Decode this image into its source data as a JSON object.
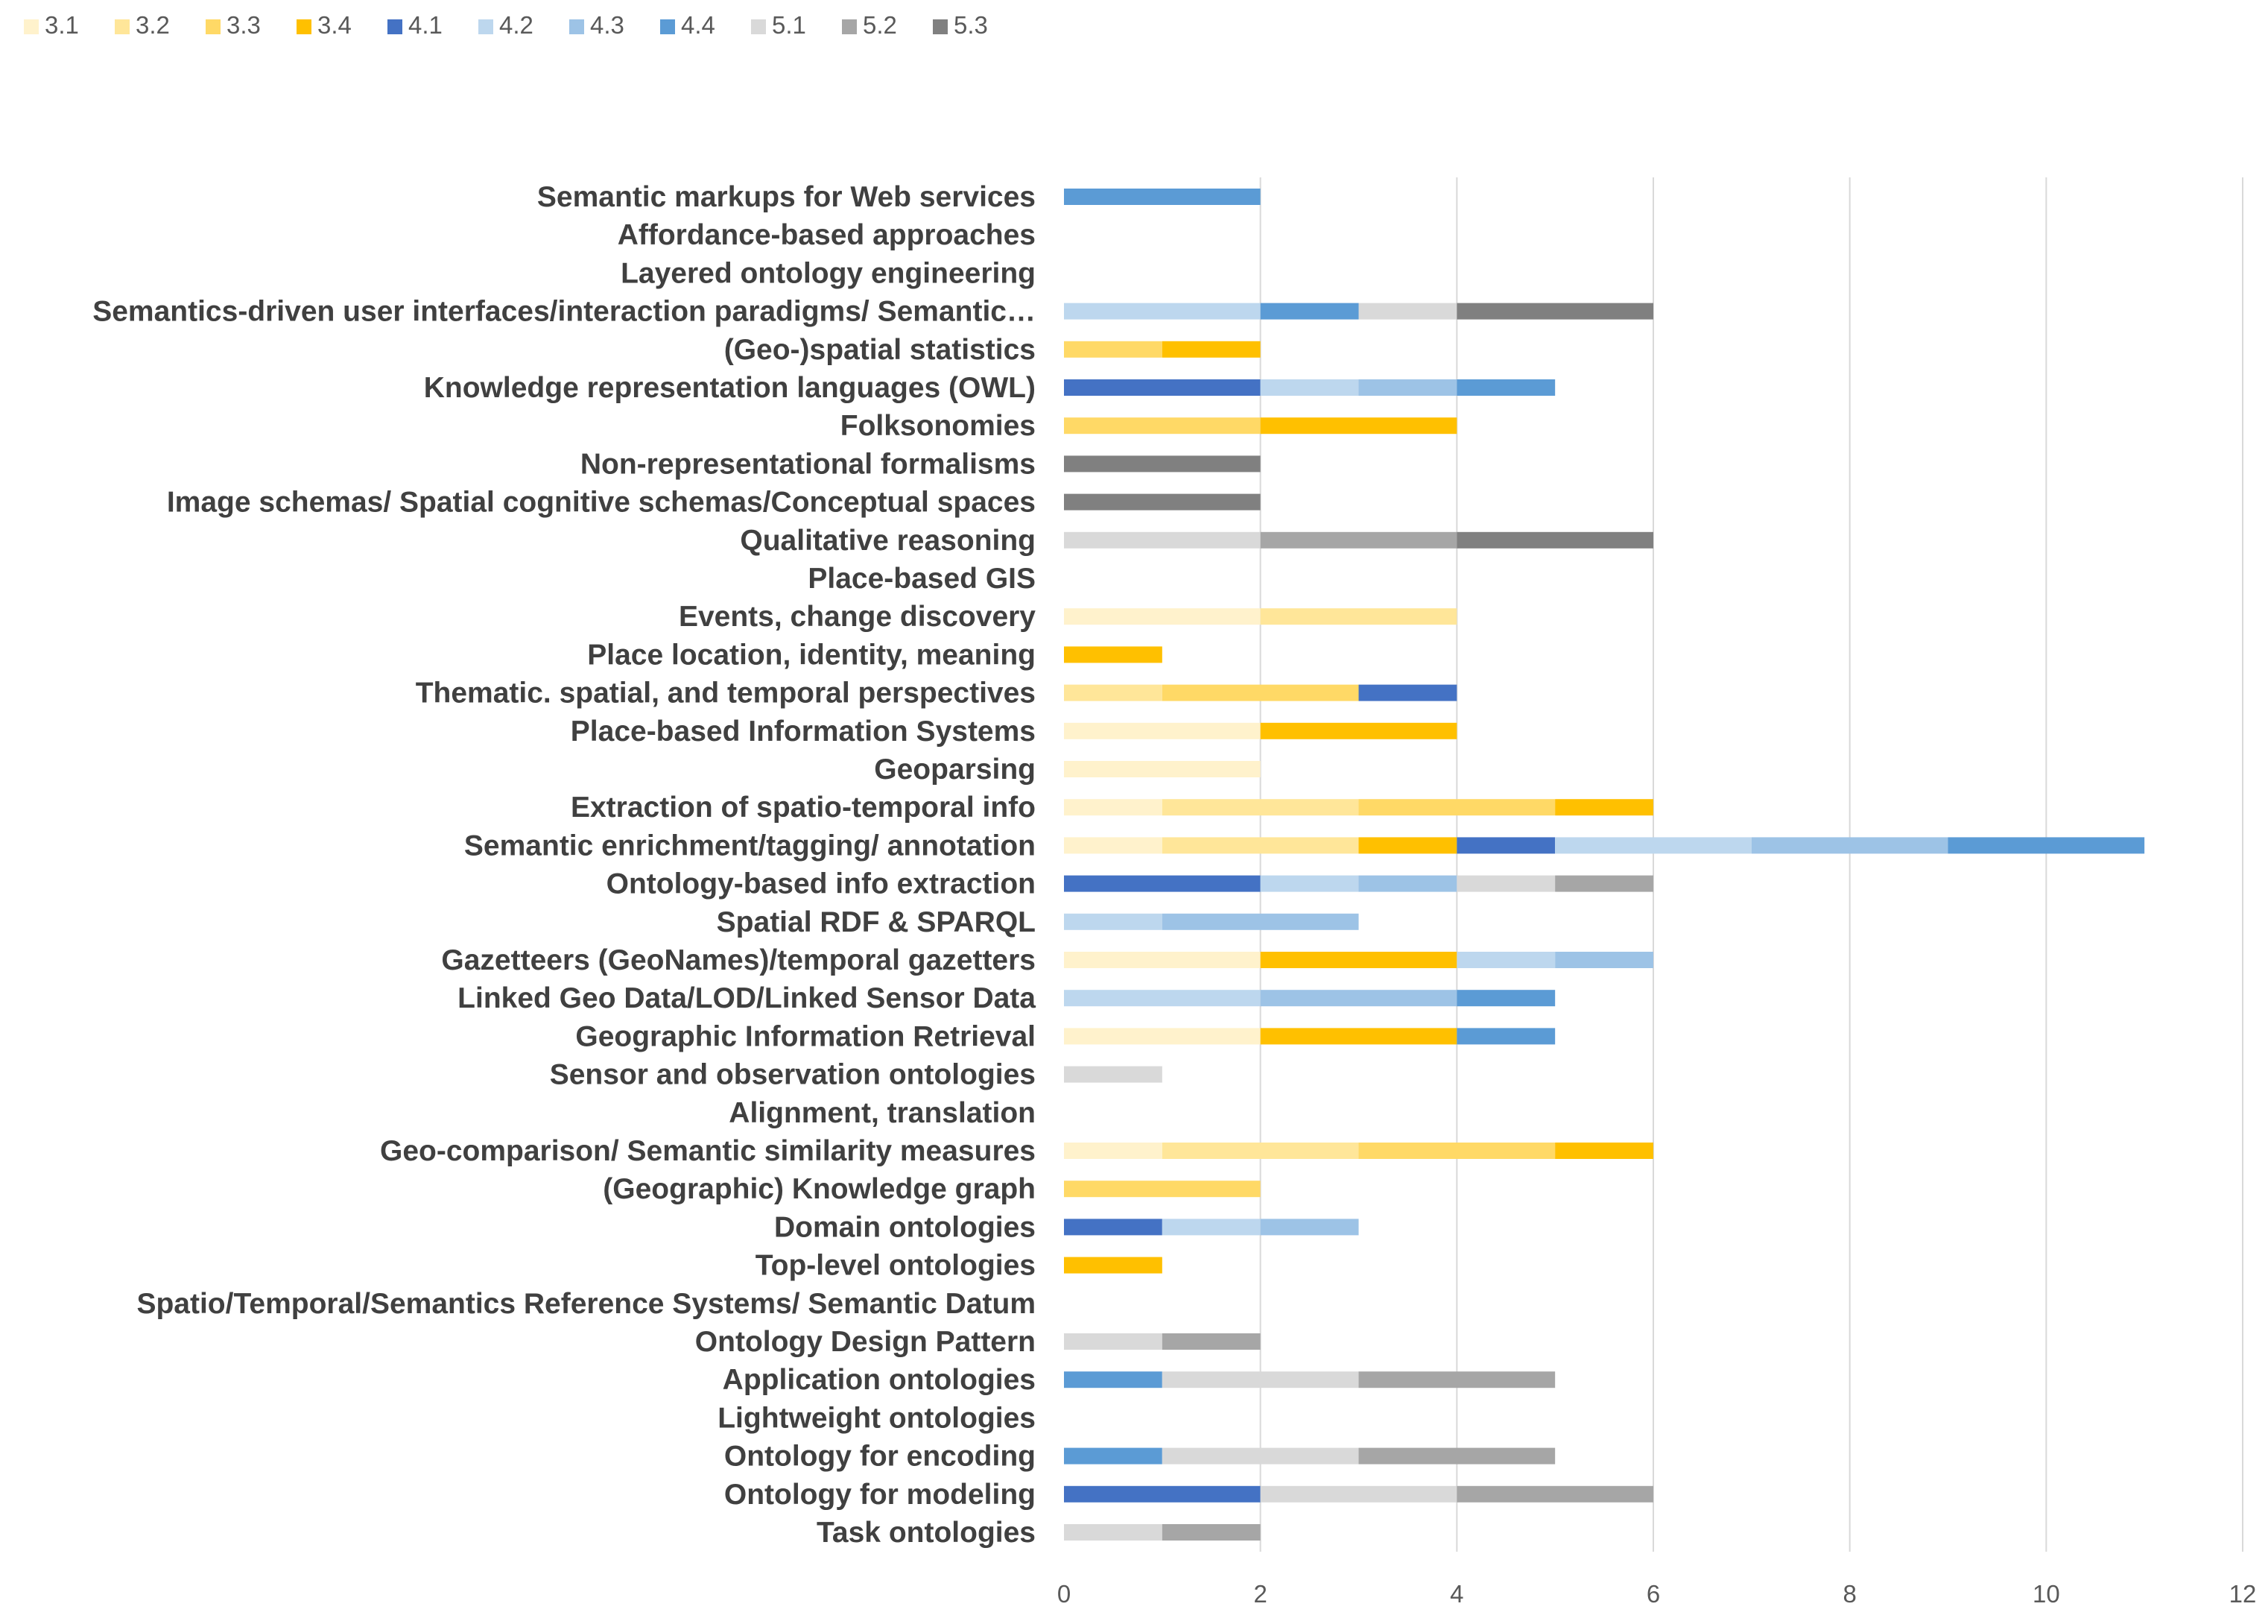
{
  "chart_data": {
    "type": "bar",
    "orientation": "horizontal",
    "stacked": true,
    "title": "",
    "xlabel": "",
    "ylabel": "",
    "xlim": [
      0,
      12
    ],
    "x_ticks": [
      "0",
      "2",
      "4",
      "6",
      "8",
      "10",
      "12"
    ],
    "grid": "vertical",
    "legend_position": "top-left",
    "categories": [
      "Semantic markups for Web services",
      "Affordance-based approaches",
      "Layered ontology engineering",
      "Semantics-driven user interfaces/interaction paradigms/ Semantic…",
      "(Geo-)spatial statistics",
      "Knowledge representation languages (OWL)",
      "Folksonomies",
      "Non-representational formalisms",
      "Image schemas/ Spatial cognitive schemas/Conceptual spaces",
      "Qualitative reasoning",
      "Place-based GIS",
      "Events, change discovery",
      "Place location, identity, meaning",
      "Thematic. spatial, and temporal perspectives",
      "Place-based Information Systems",
      "Geoparsing",
      "Extraction of spatio-temporal info",
      "Semantic enrichment/tagging/ annotation",
      "Ontology-based info extraction",
      "Spatial RDF & SPARQL",
      "Gazetteers (GeoNames)/temporal gazetters",
      "Linked Geo Data/LOD/Linked Sensor Data",
      "Geographic Information Retrieval",
      "Sensor and observation ontologies",
      "Alignment, translation",
      "Geo-comparison/ Semantic similarity measures",
      "(Geographic) Knowledge graph",
      "Domain ontologies",
      "Top-level ontologies",
      "Spatio/Temporal/Semantics Reference Systems/ Semantic Datum",
      "Ontology Design Pattern",
      "Application ontologies",
      "Lightweight ontologies",
      "Ontology for encoding",
      "Ontology for modeling",
      "Task ontologies"
    ],
    "series": [
      {
        "name": "3.1",
        "color": "#FFF2CC",
        "values": [
          0,
          0,
          0,
          0,
          0,
          0,
          0,
          0,
          0,
          0,
          0,
          2,
          0,
          0,
          2,
          2,
          1,
          1,
          0,
          0,
          2,
          0,
          2,
          0,
          0,
          1,
          0,
          0,
          0,
          0,
          0,
          0,
          0,
          0,
          0,
          0
        ]
      },
      {
        "name": "3.2",
        "color": "#FFE699",
        "values": [
          0,
          0,
          0,
          0,
          0,
          0,
          0,
          0,
          0,
          0,
          0,
          2,
          0,
          1,
          0,
          0,
          2,
          2,
          0,
          0,
          0,
          0,
          0,
          0,
          0,
          2,
          0,
          0,
          0,
          0,
          0,
          0,
          0,
          0,
          0,
          0
        ]
      },
      {
        "name": "3.3",
        "color": "#FFD966",
        "values": [
          0,
          0,
          0,
          0,
          1,
          0,
          2,
          0,
          0,
          0,
          0,
          0,
          0,
          2,
          0,
          0,
          2,
          0,
          0,
          0,
          0,
          0,
          0,
          0,
          0,
          2,
          2,
          0,
          0,
          0,
          0,
          0,
          0,
          0,
          0,
          0
        ]
      },
      {
        "name": "3.4",
        "color": "#FFC000",
        "values": [
          0,
          0,
          0,
          0,
          1,
          0,
          2,
          0,
          0,
          0,
          0,
          0,
          1,
          0,
          2,
          0,
          1,
          1,
          0,
          0,
          2,
          0,
          2,
          0,
          0,
          1,
          0,
          0,
          1,
          0,
          0,
          0,
          0,
          0,
          0,
          0
        ]
      },
      {
        "name": "4.1",
        "color": "#4472C4",
        "values": [
          0,
          0,
          0,
          0,
          0,
          2,
          0,
          0,
          0,
          0,
          0,
          0,
          0,
          1,
          0,
          0,
          0,
          1,
          2,
          0,
          0,
          0,
          0,
          0,
          0,
          0,
          0,
          1,
          0,
          0,
          0,
          0,
          0,
          0,
          2,
          0
        ]
      },
      {
        "name": "4.2",
        "color": "#BDD7EE",
        "values": [
          0,
          0,
          0,
          2,
          0,
          1,
          0,
          0,
          0,
          0,
          0,
          0,
          0,
          0,
          0,
          0,
          0,
          2,
          1,
          1,
          1,
          2,
          0,
          0,
          0,
          0,
          0,
          1,
          0,
          0,
          0,
          0,
          0,
          0,
          0,
          0
        ]
      },
      {
        "name": "4.3",
        "color": "#9DC3E6",
        "values": [
          0,
          0,
          0,
          0,
          0,
          1,
          0,
          0,
          0,
          0,
          0,
          0,
          0,
          0,
          0,
          0,
          0,
          2,
          1,
          2,
          1,
          2,
          0,
          0,
          0,
          0,
          0,
          1,
          0,
          0,
          0,
          0,
          0,
          0,
          0,
          0
        ]
      },
      {
        "name": "4.4",
        "color": "#5B9BD5",
        "values": [
          2,
          0,
          0,
          1,
          0,
          1,
          0,
          0,
          0,
          0,
          0,
          0,
          0,
          0,
          0,
          0,
          0,
          2,
          0,
          0,
          0,
          1,
          1,
          0,
          0,
          0,
          0,
          0,
          0,
          0,
          0,
          1,
          0,
          1,
          0,
          0
        ]
      },
      {
        "name": "5.1",
        "color": "#D9D9D9",
        "values": [
          0,
          0,
          0,
          1,
          0,
          0,
          0,
          0,
          0,
          2,
          0,
          0,
          0,
          0,
          0,
          0,
          0,
          0,
          1,
          0,
          0,
          0,
          0,
          1,
          0,
          0,
          0,
          0,
          0,
          0,
          1,
          2,
          0,
          2,
          2,
          1
        ]
      },
      {
        "name": "5.2",
        "color": "#A6A6A6",
        "values": [
          0,
          0,
          0,
          0,
          0,
          0,
          0,
          0,
          0,
          2,
          0,
          0,
          0,
          0,
          0,
          0,
          0,
          0,
          1,
          0,
          0,
          0,
          0,
          0,
          0,
          0,
          0,
          0,
          0,
          0,
          1,
          2,
          0,
          2,
          2,
          1
        ]
      },
      {
        "name": "5.3",
        "color": "#808080",
        "values": [
          0,
          0,
          0,
          2,
          0,
          0,
          0,
          2,
          2,
          2,
          0,
          0,
          0,
          0,
          0,
          0,
          0,
          0,
          0,
          0,
          0,
          0,
          0,
          0,
          0,
          0,
          0,
          0,
          0,
          0,
          0,
          0,
          0,
          0,
          0,
          0
        ]
      }
    ]
  }
}
